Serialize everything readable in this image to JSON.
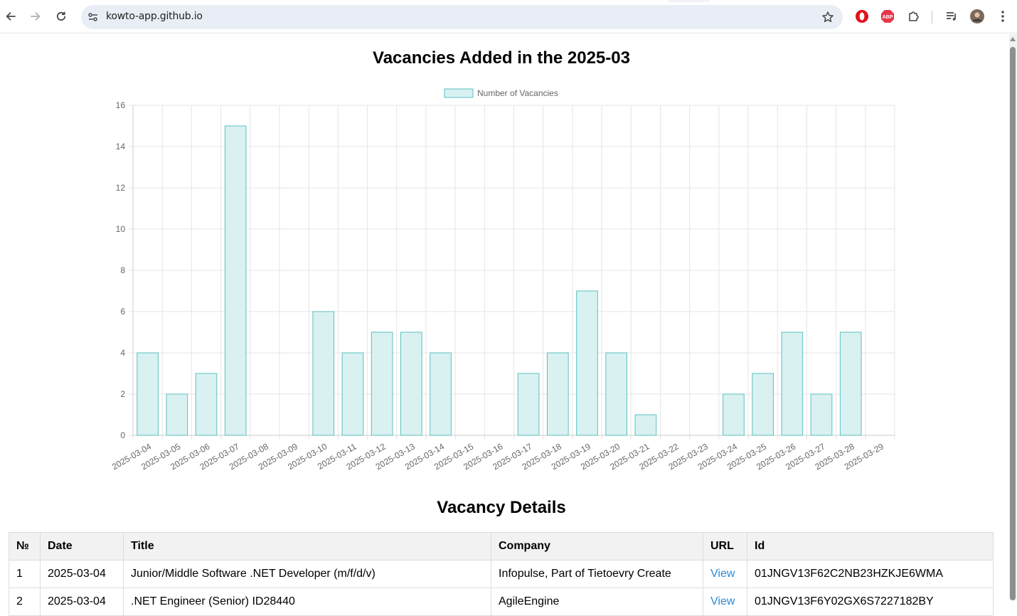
{
  "browser": {
    "url": "kowto-app.github.io",
    "icons": [
      "back-icon",
      "forward-icon",
      "reload-icon",
      "site-settings-icon",
      "bookmark-star-icon",
      "opera-extension-icon",
      "adblock-plus-icon",
      "extensions-puzzle-icon",
      "media-queue-icon",
      "profile-avatar",
      "more-menu-icon"
    ],
    "adblock_label": "ABP"
  },
  "page": {
    "chart_title": "Vacancies Added in the 2025-03",
    "details_title": "Vacancy Details"
  },
  "chart_data": {
    "type": "bar",
    "title": "Vacancies Added in the 2025-03",
    "categories": [
      "2025-03-04",
      "2025-03-05",
      "2025-03-06",
      "2025-03-07",
      "2025-03-08",
      "2025-03-09",
      "2025-03-10",
      "2025-03-11",
      "2025-03-12",
      "2025-03-13",
      "2025-03-14",
      "2025-03-15",
      "2025-03-16",
      "2025-03-17",
      "2025-03-18",
      "2025-03-19",
      "2025-03-20",
      "2025-03-21",
      "2025-03-22",
      "2025-03-23",
      "2025-03-24",
      "2025-03-25",
      "2025-03-26",
      "2025-03-27",
      "2025-03-28",
      "2025-03-29"
    ],
    "series": [
      {
        "name": "Number of Vacancies",
        "values": [
          4,
          2,
          3,
          15,
          0,
          0,
          6,
          4,
          5,
          5,
          4,
          0,
          0,
          3,
          4,
          7,
          4,
          1,
          0,
          0,
          2,
          3,
          5,
          2,
          5,
          0
        ]
      }
    ],
    "ylim": [
      0,
      16
    ],
    "yticks": [
      0,
      2,
      4,
      6,
      8,
      10,
      12,
      14,
      16
    ],
    "grid": true,
    "legend": "top-center",
    "colors": {
      "bar_fill": "#d9f1f1",
      "bar_border": "#5cc0c0",
      "grid": "#e5e5e5",
      "tick_text": "#666666"
    }
  },
  "table": {
    "headers": [
      "№",
      "Date",
      "Title",
      "Company",
      "URL",
      "Id"
    ],
    "rows": [
      {
        "num": "1",
        "date": "2025-03-04",
        "title": "Junior/Middle Software .NET Developer (m/f/d/v)",
        "company": "Infopulse, Part of Tietoevry Create",
        "url": "View",
        "id": "01JNGV13F62C2NB23HZKJE6WMA"
      },
      {
        "num": "2",
        "date": "2025-03-04",
        "title": ".NET Engineer (Senior) ID28440",
        "company": "AgileEngine",
        "url": "View",
        "id": "01JNGV13F6Y02GX6S7227182BY"
      }
    ]
  },
  "colors": {
    "link": "#2a8ad6",
    "header_bg": "#f2f2f2",
    "border": "#dddddd",
    "omnibox_bg": "#e9eef6"
  }
}
